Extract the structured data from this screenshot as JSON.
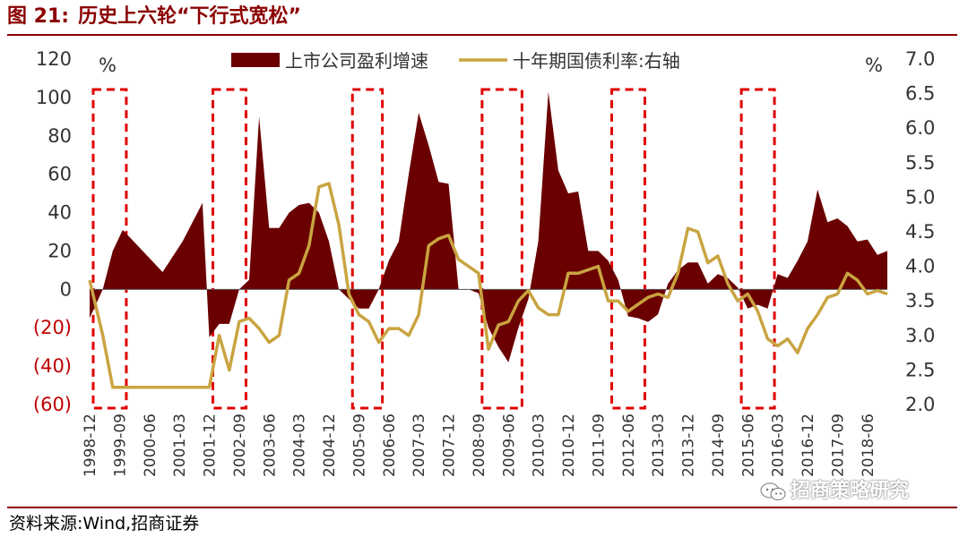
{
  "title": {
    "figure_number": "图 21:",
    "text": "历史上六轮“下行式宽松”"
  },
  "source": "资料来源:Wind,招商证券",
  "watermark": "招商策略研究",
  "colors": {
    "earnings": "#6B0000",
    "bond": "#C9A441",
    "highlight": "#E00000",
    "brand": "#8B0000"
  },
  "chart_data": {
    "type": "area",
    "left_unit": "%",
    "right_unit": "%",
    "left_ylim": [
      -60,
      120
    ],
    "right_ylim": [
      2.0,
      7.0
    ],
    "left_ticks": [
      "120",
      "100",
      "80",
      "60",
      "40",
      "20",
      "0",
      "(20)",
      "(40)",
      "(60)"
    ],
    "right_ticks": [
      "7.0",
      "6.5",
      "6.0",
      "5.5",
      "5.0",
      "4.5",
      "4.0",
      "3.5",
      "3.0",
      "2.5",
      "2.0"
    ],
    "x_tick_labels": [
      "1998-12",
      "1999-09",
      "2000-06",
      "2001-03",
      "2001-12",
      "2002-09",
      "2003-06",
      "2004-03",
      "2004-12",
      "2005-09",
      "2006-06",
      "2007-03",
      "2007-12",
      "2008-09",
      "2009-06",
      "2010-03",
      "2010-12",
      "2011-09",
      "2012-06",
      "2013-03",
      "2013-12",
      "2014-09",
      "2015-06",
      "2016-03",
      "2016-12",
      "2017-09",
      "2018-06"
    ],
    "legend": [
      "上市公司盈利增速",
      "十年期国债利率:右轴"
    ],
    "series": [
      {
        "name": "上市公司盈利增速",
        "axis": "left",
        "type": "area",
        "x": [
          1998.92,
          1999.25,
          1999.5,
          1999.75,
          2000.25,
          2000.75,
          2001.25,
          2001.5,
          2001.75,
          2001.92,
          2002.17,
          2002.42,
          2002.67,
          2002.92,
          2003.17,
          2003.42,
          2003.67,
          2003.92,
          2004.17,
          2004.42,
          2004.67,
          2004.92,
          2005.17,
          2005.42,
          2005.67,
          2005.92,
          2006.17,
          2006.42,
          2006.67,
          2006.92,
          2007.17,
          2007.42,
          2007.67,
          2007.92,
          2008.17,
          2008.42,
          2008.67,
          2008.92,
          2009.17,
          2009.42,
          2009.67,
          2009.92,
          2010.17,
          2010.42,
          2010.67,
          2010.92,
          2011.17,
          2011.42,
          2011.67,
          2011.92,
          2012.17,
          2012.42,
          2012.67,
          2012.92,
          2013.17,
          2013.42,
          2013.67,
          2013.92,
          2014.17,
          2014.42,
          2014.67,
          2014.92,
          2015.17,
          2015.42,
          2015.67,
          2015.92,
          2016.17,
          2016.42,
          2016.67,
          2016.92,
          2017.17,
          2017.42,
          2017.67,
          2017.92,
          2018.17,
          2018.42,
          2018.67,
          2018.92
        ],
        "values": [
          -15,
          0,
          20,
          31,
          20,
          9,
          25,
          35,
          45,
          -25,
          -18,
          -18,
          0,
          5,
          90,
          32,
          32,
          40,
          44,
          45,
          40,
          25,
          0,
          -5,
          -10,
          -10,
          0,
          15,
          25,
          60,
          92,
          75,
          56,
          55,
          0,
          0,
          -2,
          -20,
          -30,
          -38,
          -20,
          -5,
          25,
          103,
          62,
          50,
          51,
          20,
          20,
          15,
          5,
          -14,
          -15,
          -17,
          -13,
          3,
          10,
          14,
          14,
          3,
          8,
          6,
          1,
          -10,
          -8,
          -10,
          8,
          6,
          15,
          25,
          52,
          35,
          37,
          33,
          25,
          26,
          18,
          20
        ]
      },
      {
        "name": "十年期国债利率:右轴",
        "axis": "right",
        "type": "line",
        "x": [
          1998.92,
          1999.25,
          1999.5,
          1999.75,
          2000.0,
          2000.5,
          2001.0,
          2001.5,
          2001.75,
          2001.92,
          2002.17,
          2002.42,
          2002.67,
          2002.92,
          2003.17,
          2003.42,
          2003.67,
          2003.92,
          2004.17,
          2004.42,
          2004.67,
          2004.92,
          2005.17,
          2005.42,
          2005.67,
          2005.92,
          2006.17,
          2006.42,
          2006.67,
          2006.92,
          2007.17,
          2007.42,
          2007.67,
          2007.92,
          2008.17,
          2008.42,
          2008.67,
          2008.92,
          2009.17,
          2009.42,
          2009.67,
          2009.92,
          2010.17,
          2010.42,
          2010.67,
          2010.92,
          2011.17,
          2011.42,
          2011.67,
          2011.92,
          2012.17,
          2012.42,
          2012.67,
          2012.92,
          2013.17,
          2013.42,
          2013.67,
          2013.92,
          2014.17,
          2014.42,
          2014.67,
          2014.92,
          2015.17,
          2015.42,
          2015.67,
          2015.92,
          2016.17,
          2016.42,
          2016.67,
          2016.92,
          2017.17,
          2017.42,
          2017.67,
          2017.92,
          2018.17,
          2018.42,
          2018.67,
          2018.92
        ],
        "values": [
          3.8,
          3.0,
          2.25,
          2.25,
          2.25,
          2.25,
          2.25,
          2.25,
          2.25,
          2.25,
          3.0,
          2.5,
          3.2,
          3.25,
          3.1,
          2.9,
          3.0,
          3.8,
          3.9,
          4.3,
          5.15,
          5.2,
          4.6,
          3.6,
          3.3,
          3.2,
          2.9,
          3.1,
          3.1,
          3.0,
          3.3,
          4.3,
          4.4,
          4.45,
          4.1,
          4.0,
          3.9,
          2.8,
          3.15,
          3.2,
          3.5,
          3.65,
          3.4,
          3.3,
          3.3,
          3.9,
          3.9,
          3.95,
          4.0,
          3.5,
          3.5,
          3.35,
          3.45,
          3.55,
          3.6,
          3.55,
          3.9,
          4.55,
          4.5,
          4.05,
          4.15,
          3.75,
          3.5,
          3.6,
          3.35,
          2.95,
          2.85,
          2.95,
          2.75,
          3.1,
          3.3,
          3.55,
          3.6,
          3.9,
          3.8,
          3.6,
          3.65,
          3.6
        ]
      }
    ],
    "highlight_periods": [
      [
        1998.92,
        1999.75
      ],
      [
        2001.92,
        2002.75
      ],
      [
        2005.42,
        2006.17
      ],
      [
        2008.67,
        2009.67
      ],
      [
        2011.92,
        2012.75
      ],
      [
        2015.17,
        2016.0
      ]
    ]
  }
}
